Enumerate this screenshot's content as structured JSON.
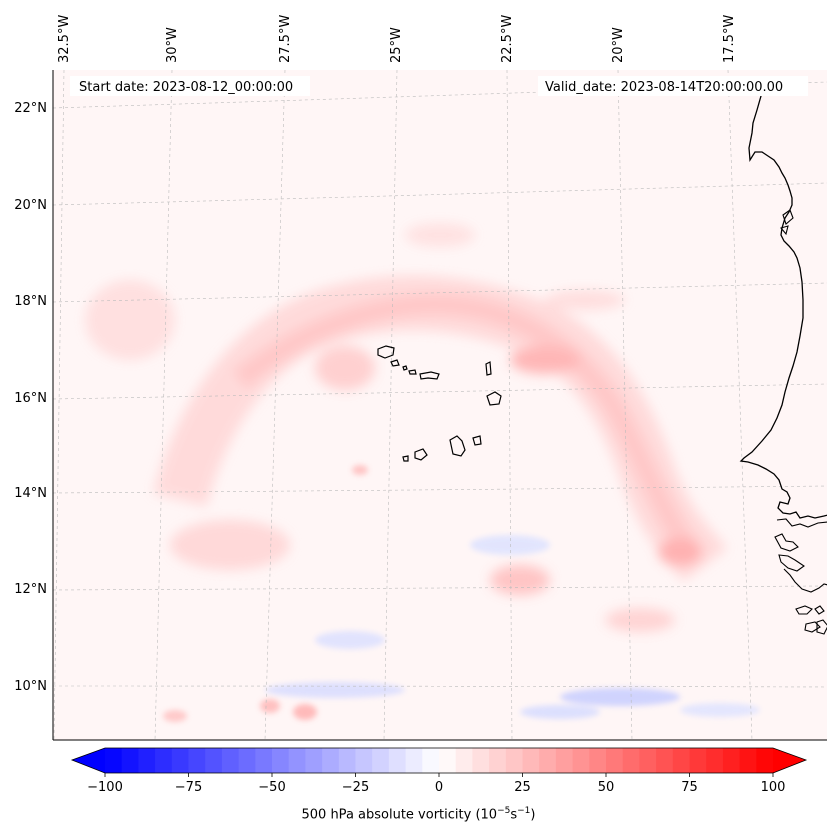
{
  "header": {
    "start_date": "Start date: 2023-08-12_00:00:00",
    "valid_date": "Valid_date: 2023-08-14T20:00:00.00"
  },
  "axes": {
    "lon_labels": [
      "32.5°W",
      "30°W",
      "27.5°W",
      "25°W",
      "22.5°W",
      "20°W",
      "17.5°W"
    ],
    "lat_labels": [
      "22°N",
      "20°N",
      "18°N",
      "16°N",
      "14°N",
      "12°N",
      "10°N"
    ]
  },
  "colorbar": {
    "ticks": [
      "−100",
      "−75",
      "−50",
      "−25",
      "0",
      "25",
      "50",
      "75",
      "100"
    ],
    "title_main": "500 hPa absolute vorticity (10",
    "title_exp1": "−5",
    "title_mid": "s",
    "title_exp2": "−1",
    "title_end": ")",
    "vmin": -100,
    "vmax": 100,
    "neg_color": "#0000ff",
    "pos_color": "#ff0000"
  },
  "colors": {
    "coastline": "#000000",
    "gridline": "#bbbbbb",
    "background": "#fff6f6"
  }
}
